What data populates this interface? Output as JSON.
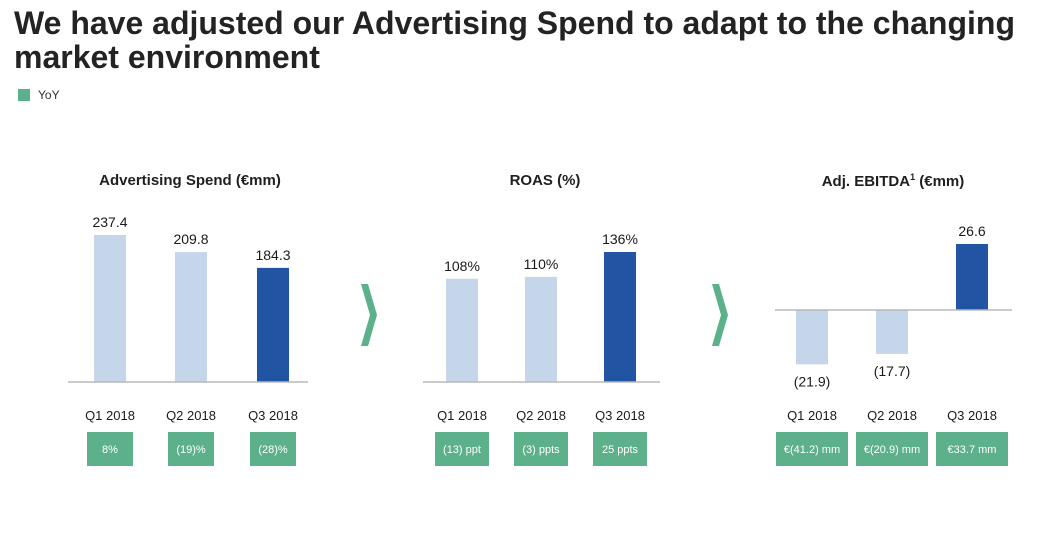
{
  "title": "We have adjusted our Advertising Spend to adapt to the changing market environment",
  "legend": {
    "label": "YoY",
    "color": "#5cb08a"
  },
  "colors": {
    "light_bar": "#c5d6ea",
    "dark_bar": "#2155a3",
    "yoy_box": "#5cb08a",
    "axis": "#b8b8b8"
  },
  "charts": [
    {
      "title_main": "Advertising Spend (€mm)",
      "title_sup": ""
    },
    {
      "title_main": "ROAS (%)",
      "title_sup": ""
    },
    {
      "title_pre": "Adj. EBITDA",
      "title_sup": "1",
      "title_post": " (€mm)"
    }
  ],
  "chart_data": [
    {
      "type": "bar",
      "title": "Advertising Spend (€mm)",
      "categories": [
        "Q1 2018",
        "Q2 2018",
        "Q3 2018"
      ],
      "values": [
        237.4,
        209.8,
        184.3
      ],
      "labels": [
        "237.4",
        "209.8",
        "184.3"
      ],
      "yoy": [
        "8%",
        "(19)%",
        "(28)%"
      ],
      "highlight": [
        false,
        false,
        true
      ],
      "ylim": [
        0,
        237.4
      ]
    },
    {
      "type": "bar",
      "title": "ROAS (%)",
      "categories": [
        "Q1 2018",
        "Q2 2018",
        "Q3 2018"
      ],
      "values": [
        108,
        110,
        136
      ],
      "labels": [
        "108%",
        "110%",
        "136%"
      ],
      "yoy": [
        "(13) ppt",
        "(3) ppts",
        "25 ppts"
      ],
      "highlight": [
        false,
        false,
        true
      ],
      "ylim": [
        0,
        136
      ]
    },
    {
      "type": "bar",
      "title": "Adj. EBITDA1 (€mm)",
      "categories": [
        "Q1 2018",
        "Q2 2018",
        "Q3 2018"
      ],
      "values": [
        -21.9,
        -17.7,
        26.6
      ],
      "labels": [
        "(21.9)",
        "(17.7)",
        "26.6"
      ],
      "yoy": [
        "€(41.2) mm",
        "€(20.9) mm",
        "€33.7 mm"
      ],
      "highlight": [
        false,
        false,
        true
      ],
      "ylim": [
        -21.9,
        26.6
      ]
    }
  ]
}
